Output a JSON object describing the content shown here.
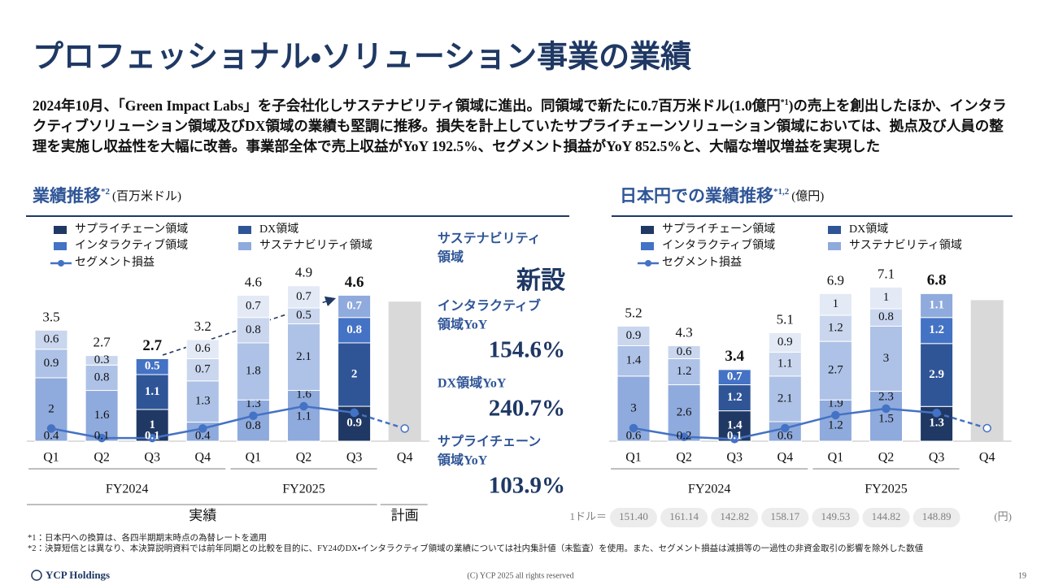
{
  "header": {
    "title": "プロフェッショナル・ソリューション事業の業績",
    "summary": [
      "2024年10月、「Green Impact Labs」を子会社化しサステナビリティ領域に進出。同領域で新たに0.7百万米ドル(1.0億円",
      "*1",
      ")の売上を創出したほか、インタラクティブソリューション領域及びDX領域の業績も堅調に推移。損失を計上していたサプライチェーンソリューション領域においては、拠点及び人員の整理を実施し収益性を大幅に改善。事業部全体で売上収益がYoY 192.5%、セグメント損益がYoY 852.5%と、大幅な増収増益を実現した"
    ]
  },
  "chart_data": [
    {
      "type": "bar",
      "stacked": true,
      "title": "業績推移",
      "title_note": "*2",
      "unit": "(百万米ドル)",
      "categories": [
        "Q1",
        "Q2",
        "Q3",
        "Q4",
        "Q1",
        "Q2",
        "Q3",
        "Q4"
      ],
      "groups": [
        "FY2024",
        "FY2025"
      ],
      "periods": [
        "実績",
        "計画"
      ],
      "ylim": [
        0,
        5.2
      ],
      "highlight": [
        2,
        6
      ],
      "series": [
        {
          "name": "サプライチェーン領域",
          "color": "#203864",
          "muted_color": "#8faadc",
          "values": [
            2.0,
            1.6,
            1.0,
            0.6,
            1.3,
            1.6,
            1.1,
            null
          ]
        },
        {
          "name": "DX領域",
          "color": "#2f5597",
          "muted_color": "#adc2e6",
          "values": [
            0.9,
            0.8,
            1.1,
            1.3,
            1.8,
            2.1,
            2.0,
            null
          ]
        },
        {
          "name": "インタラクティブ領域",
          "color": "#4472c4",
          "muted_color": "#c9d6ee",
          "values": [
            0.6,
            0.3,
            0.5,
            0.7,
            0.8,
            0.5,
            0.8,
            null
          ]
        },
        {
          "name": "サステナビリティ領域",
          "color": "#8faadc",
          "muted_color": "#e3eaf6",
          "values": [
            null,
            null,
            null,
            0.6,
            0.7,
            0.7,
            0.7,
            null
          ]
        },
        {
          "name": "セグメント損益",
          "type": "line",
          "color": "#4472c4",
          "values": [
            0.4,
            0.1,
            0.1,
            0.4,
            0.8,
            1.1,
            0.9,
            0.4
          ]
        }
      ],
      "plan": {
        "color": "#d9d9d9",
        "values": [
          null,
          null,
          null,
          null,
          null,
          null,
          null,
          4.4
        ]
      },
      "totals": [
        3.5,
        2.7,
        2.7,
        3.2,
        4.6,
        4.9,
        4.6,
        null
      ]
    },
    {
      "type": "bar",
      "stacked": true,
      "title": "日本円での業績推移",
      "title_note": "*1,2",
      "unit": "(億円)",
      "categories": [
        "Q1",
        "Q2",
        "Q3",
        "Q4",
        "Q1",
        "Q2",
        "Q3",
        "Q4"
      ],
      "groups": [
        "FY2024",
        "FY2025"
      ],
      "ylim": [
        0,
        7.6
      ],
      "highlight": [
        2,
        6
      ],
      "series": [
        {
          "name": "サプライチェーン領域",
          "color": "#203864",
          "muted_color": "#8faadc",
          "values": [
            3.0,
            2.6,
            1.4,
            0.9,
            1.9,
            2.3,
            1.6,
            null
          ]
        },
        {
          "name": "DX領域",
          "color": "#2f5597",
          "muted_color": "#adc2e6",
          "values": [
            1.4,
            1.2,
            1.2,
            2.1,
            2.7,
            3.0,
            2.9,
            null
          ]
        },
        {
          "name": "インタラクティブ領域",
          "color": "#4472c4",
          "muted_color": "#c9d6ee",
          "values": [
            0.9,
            0.6,
            0.7,
            1.1,
            1.2,
            0.8,
            1.2,
            null
          ]
        },
        {
          "name": "サステナビリティ領域",
          "color": "#8faadc",
          "muted_color": "#e3eaf6",
          "values": [
            null,
            null,
            null,
            0.9,
            1.0,
            1.0,
            1.1,
            null
          ]
        },
        {
          "name": "セグメント損益",
          "type": "line",
          "color": "#4472c4",
          "values": [
            0.6,
            0.2,
            0.1,
            0.6,
            1.2,
            1.5,
            1.3,
            0.6
          ]
        }
      ],
      "plan": {
        "color": "#d9d9d9",
        "values": [
          null,
          null,
          null,
          null,
          null,
          null,
          null,
          6.5
        ]
      },
      "totals": [
        5.2,
        4.3,
        3.4,
        5.1,
        6.9,
        7.1,
        6.8,
        null
      ],
      "exchange_rates": {
        "label": "1ドル＝",
        "values": [
          "151.40",
          "161.14",
          "142.82",
          "158.17",
          "149.53",
          "144.82",
          "148.89"
        ],
        "unit": "(円)"
      }
    }
  ],
  "kpis": [
    {
      "label": [
        "サステナビリティ",
        "領域"
      ],
      "value": "新設"
    },
    {
      "label": [
        "インタラクティブ",
        "領域YoY"
      ],
      "value": "154.6%"
    },
    {
      "label": [
        "DX領域YoY"
      ],
      "value": "240.7%"
    },
    {
      "label": [
        "サプライチェーン",
        "領域YoY"
      ],
      "value": "103.9%"
    }
  ],
  "footnotes": [
    "*1：日本円への換算は、各四半期期末時点の為替レートを適用",
    "*2：決算短信とは異なり、本決算説明資料では前年同期との比較を目的に、FY24のDX・インタラクティブ領域の業績については社内集計値（未監査）を使用。また、セグメント損益は減損等の一過性の非資金取引の影響を除外した数値"
  ],
  "footer": {
    "logo": "YCP Holdings",
    "copyright": "(C) YCP 2025 all rights reserved",
    "page": "19"
  }
}
